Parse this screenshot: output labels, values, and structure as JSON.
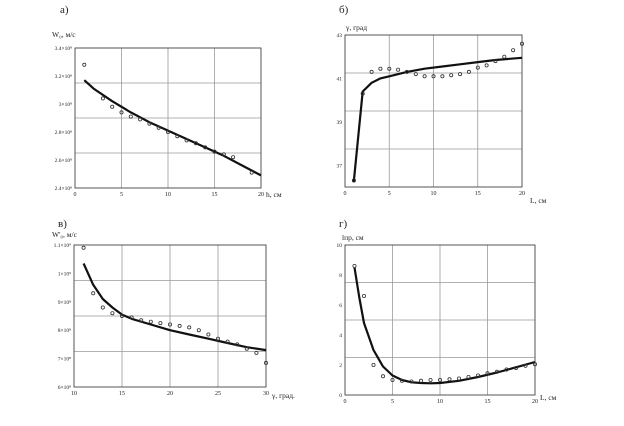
{
  "chart_data": [
    {
      "type": "scatter",
      "panel_label": "а)",
      "xlabel": "h, см",
      "ylabel": "W₀, м/с",
      "xlim": [
        0,
        20
      ],
      "ylim": [
        2.4,
        3.4
      ],
      "x_ticks": [
        "0",
        "5",
        "10",
        "15",
        "20"
      ],
      "y_ticks": [
        "2.4×10⁸",
        "2.6×10⁸",
        "2.8×10⁸",
        "3×10⁸",
        "3.2×10⁸",
        "3.4×10⁸"
      ],
      "y_tick_values": [
        2.4,
        2.6,
        2.8,
        3.0,
        3.2,
        3.4
      ],
      "grid": true,
      "series": [
        {
          "kind": "line",
          "x": [
            1,
            2,
            4,
            6,
            8,
            10,
            12,
            14,
            16,
            18,
            20
          ],
          "y": [
            3.17,
            3.11,
            3.02,
            2.94,
            2.87,
            2.81,
            2.75,
            2.69,
            2.63,
            2.56,
            2.49
          ]
        },
        {
          "kind": "points",
          "x": [
            1,
            3,
            4,
            5,
            6,
            7,
            8,
            9,
            10,
            11,
            12,
            13,
            14,
            15,
            16,
            17,
            19
          ],
          "y": [
            3.28,
            3.04,
            2.98,
            2.94,
            2.91,
            2.89,
            2.86,
            2.83,
            2.8,
            2.77,
            2.74,
            2.72,
            2.69,
            2.66,
            2.64,
            2.62,
            2.51
          ]
        }
      ]
    },
    {
      "type": "scatter",
      "panel_label": "б)",
      "xlabel": "L, см",
      "ylabel": "γ, град",
      "xlim": [
        0,
        20
      ],
      "ylim": [
        36,
        43
      ],
      "x_ticks": [
        "0",
        "5",
        "10",
        "15",
        "20"
      ],
      "y_ticks": [
        "37",
        "39",
        "41",
        "43"
      ],
      "y_tick_values": [
        37,
        39,
        41,
        43
      ],
      "grid": true,
      "series": [
        {
          "kind": "line",
          "x": [
            1,
            2,
            3,
            4,
            5,
            7,
            9,
            11,
            13,
            15,
            17,
            20
          ],
          "y": [
            36.3,
            40.4,
            40.8,
            41.0,
            41.1,
            41.3,
            41.45,
            41.55,
            41.65,
            41.75,
            41.85,
            41.95
          ]
        },
        {
          "kind": "points",
          "x": [
            1,
            2,
            3,
            4,
            5,
            6,
            7,
            8,
            9,
            10,
            11,
            12,
            13,
            14,
            15,
            16,
            17,
            18,
            19,
            20
          ],
          "y": [
            36.3,
            40.3,
            41.3,
            41.45,
            41.45,
            41.4,
            41.3,
            41.2,
            41.1,
            41.1,
            41.1,
            41.15,
            41.2,
            41.3,
            41.5,
            41.6,
            41.8,
            42.0,
            42.3,
            42.6
          ]
        }
      ]
    },
    {
      "type": "scatter",
      "panel_label": "в)",
      "xlabel": "γ, град.",
      "ylabel": "W'₀, м/с",
      "xlim": [
        10,
        30
      ],
      "ylim": [
        6,
        11
      ],
      "x_ticks": [
        "10",
        "15",
        "20",
        "25",
        "30"
      ],
      "y_ticks": [
        "6×10⁸",
        "7×10⁸",
        "8×10⁸",
        "9×10⁸",
        "1×10⁹",
        "1.1×10⁹"
      ],
      "y_tick_values": [
        6,
        7,
        8,
        9,
        10,
        11
      ],
      "grid": true,
      "series": [
        {
          "kind": "line",
          "x": [
            11,
            12,
            13,
            14,
            15,
            16,
            18,
            20,
            22,
            24,
            26,
            28,
            30
          ],
          "y": [
            10.35,
            9.6,
            9.1,
            8.8,
            8.55,
            8.4,
            8.2,
            8.0,
            7.85,
            7.7,
            7.55,
            7.4,
            7.3
          ]
        },
        {
          "kind": "points",
          "x": [
            11,
            12,
            13,
            14,
            15,
            16,
            17,
            18,
            19,
            20,
            21,
            22,
            23,
            24,
            25,
            26,
            27,
            28,
            29,
            30
          ],
          "y": [
            10.9,
            9.3,
            8.8,
            8.6,
            8.5,
            8.45,
            8.35,
            8.3,
            8.25,
            8.2,
            8.15,
            8.1,
            8.0,
            7.85,
            7.7,
            7.6,
            7.5,
            7.35,
            7.2,
            6.85
          ]
        }
      ]
    },
    {
      "type": "scatter",
      "panel_label": "г)",
      "xlabel": "L, см",
      "ylabel": "lпр, см",
      "xlim": [
        0,
        20
      ],
      "ylim": [
        0,
        10
      ],
      "x_ticks": [
        "0",
        "5",
        "10",
        "15",
        "20"
      ],
      "y_ticks": [
        "0",
        "2",
        "4",
        "6",
        "8",
        "10"
      ],
      "y_tick_values": [
        0,
        2,
        4,
        6,
        8,
        10
      ],
      "grid": true,
      "series": [
        {
          "kind": "line",
          "x": [
            1,
            1.5,
            2,
            3,
            4,
            5,
            6,
            7,
            8,
            9,
            10,
            12,
            14,
            16,
            18,
            20
          ],
          "y": [
            8.5,
            6.5,
            4.8,
            3.0,
            1.9,
            1.3,
            1.0,
            0.85,
            0.8,
            0.78,
            0.8,
            0.95,
            1.2,
            1.5,
            1.85,
            2.2
          ]
        },
        {
          "kind": "points",
          "x": [
            1,
            2,
            3,
            4,
            5,
            6,
            7,
            8,
            9,
            10,
            11,
            12,
            13,
            14,
            15,
            16,
            17,
            18,
            19,
            20
          ],
          "y": [
            8.6,
            6.6,
            2.0,
            1.25,
            1.0,
            0.95,
            0.9,
            0.95,
            1.0,
            1.0,
            1.05,
            1.1,
            1.2,
            1.3,
            1.45,
            1.55,
            1.7,
            1.8,
            1.95,
            2.05
          ]
        }
      ]
    }
  ]
}
